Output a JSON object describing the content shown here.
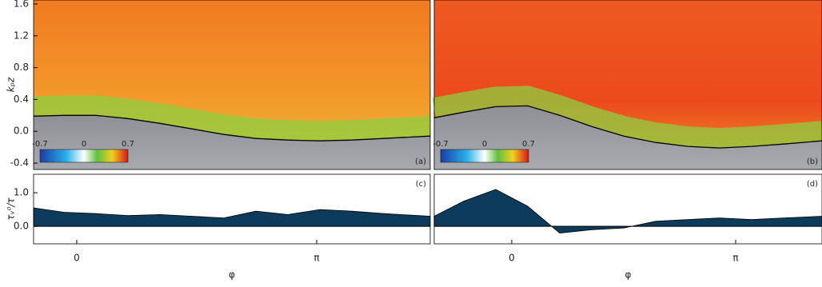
{
  "chart_data": [
    {
      "type": "line",
      "panel_label": "(a)",
      "ylabel": "kₚz",
      "xlim": [
        -0.565,
        4.628
      ],
      "ylim": [
        -0.48,
        1.65
      ],
      "yticks": [
        -0.4,
        {
          "value": 0,
          "label": "0.0"
        },
        0.4,
        0.8,
        1.2,
        1.6
      ],
      "colorbar": {
        "ticks": [
          -0.7,
          0,
          0.7
        ]
      },
      "x": [
        -0.565,
        -0.168,
        0.251,
        0.67,
        1.089,
        1.508,
        1.927,
        2.346,
        2.765,
        3.183,
        3.602,
        4.021,
        4.628
      ],
      "series": [
        {
          "color": "#000000",
          "values": [
            0.19,
            0.2,
            0.2,
            0.16,
            0.1,
            0.03,
            -0.04,
            -0.09,
            -0.11,
            -0.12,
            -0.11,
            -0.09,
            -0.06
          ]
        }
      ]
    },
    {
      "type": "line",
      "panel_label": "(b)",
      "xlim": [
        -1.088,
        4.353
      ],
      "ylim": [
        -0.48,
        1.65
      ],
      "colorbar": {
        "ticks": [
          -0.7,
          0,
          0.7
        ]
      },
      "x": [
        -1.088,
        -0.673,
        -0.224,
        0.224,
        0.673,
        1.122,
        1.571,
        2.02,
        2.468,
        2.917,
        3.366,
        3.815,
        4.353
      ],
      "series": [
        {
          "color": "#000000",
          "values": [
            0.17,
            0.24,
            0.31,
            0.32,
            0.2,
            0.06,
            -0.06,
            -0.14,
            -0.19,
            -0.21,
            -0.19,
            -0.16,
            -0.12
          ]
        }
      ]
    },
    {
      "type": "area",
      "panel_label": "(c)",
      "ylabel": "τᵥ⁰/τ",
      "xlabel": "φ",
      "xlim": [
        -0.565,
        4.628
      ],
      "ylim": [
        -0.52,
        1.55
      ],
      "yticks": [
        {
          "value": 0,
          "label": "0.0"
        },
        {
          "value": 1,
          "label": "1.0"
        }
      ],
      "xticks": [
        0,
        {
          "value": 3.1416,
          "label": "π"
        }
      ],
      "x": [
        -0.565,
        -0.168,
        0.251,
        0.67,
        1.089,
        1.508,
        1.927,
        2.346,
        2.765,
        3.183,
        3.602,
        4.021,
        4.628
      ],
      "series": [
        {
          "color": "#0d3b5c",
          "values": [
            0.55,
            0.42,
            0.38,
            0.32,
            0.35,
            0.3,
            0.25,
            0.45,
            0.35,
            0.5,
            0.45,
            0.38,
            0.3
          ]
        }
      ]
    },
    {
      "type": "area",
      "panel_label": "(d)",
      "xlabel": "φ",
      "xlim": [
        -1.088,
        4.353
      ],
      "ylim": [
        -0.52,
        1.55
      ],
      "xticks": [
        0,
        {
          "value": 3.1416,
          "label": "π"
        }
      ],
      "x": [
        -1.088,
        -0.673,
        -0.224,
        0.224,
        0.673,
        1.122,
        1.571,
        2.02,
        2.468,
        2.917,
        3.366,
        3.815,
        4.353
      ],
      "series": [
        {
          "color": "#0d3b5c",
          "values": [
            0.3,
            0.75,
            1.1,
            0.6,
            -0.2,
            -0.1,
            -0.05,
            0.15,
            0.2,
            0.25,
            0.2,
            0.25,
            0.3
          ]
        }
      ]
    }
  ]
}
